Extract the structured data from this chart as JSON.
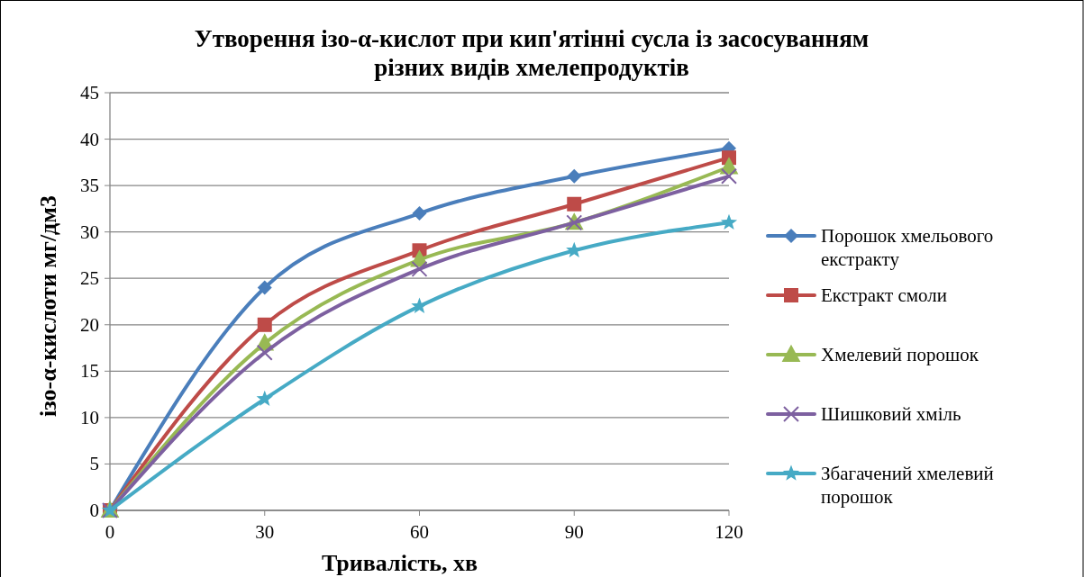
{
  "chart_data": {
    "type": "line",
    "title": "Утворення ізо-α-кислот при кип'ятінні сусла із засосуванням різних видів хмелепродуктів",
    "xlabel": "Тривалість, хв",
    "ylabel": "ізо-α-кислоти мг/дм3",
    "x": [
      0,
      30,
      60,
      90,
      120
    ],
    "xlim": [
      0,
      120
    ],
    "xticks": [
      0,
      30,
      60,
      90,
      120
    ],
    "ylim": [
      0,
      45
    ],
    "yticks": [
      0,
      5,
      10,
      15,
      20,
      25,
      30,
      35,
      40,
      45
    ],
    "grid": "y",
    "legend": "right",
    "series": [
      {
        "name": "Порошок хмельового екстракту",
        "color": "#4a7ebb",
        "marker": "diamond",
        "values": [
          0,
          24,
          32,
          36,
          39
        ]
      },
      {
        "name": "Екстракт смоли",
        "color": "#be4b48",
        "marker": "square",
        "values": [
          0,
          20,
          28,
          33,
          38
        ]
      },
      {
        "name": "Хмелевий порошок",
        "color": "#98b954",
        "marker": "triangle",
        "values": [
          0,
          18,
          27,
          31,
          37
        ]
      },
      {
        "name": "Шишковий хміль",
        "color": "#7d60a0",
        "marker": "cross",
        "values": [
          0,
          17,
          26,
          31,
          36
        ]
      },
      {
        "name": "Збагачений хмелевий порошок",
        "color": "#46aac5",
        "marker": "star",
        "values": [
          0,
          12,
          22,
          28,
          31
        ]
      }
    ]
  }
}
